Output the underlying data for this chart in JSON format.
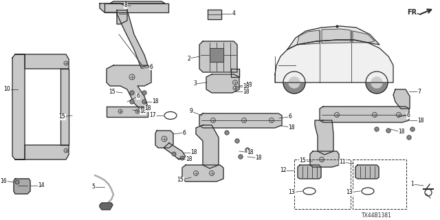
{
  "bg_color": "#ffffff",
  "diagram_ref": "TX44B1381",
  "gray": "#2a2a2a",
  "lightgray": "#aaaaaa",
  "fillgray": "#c8c8c8",
  "lw": 0.9
}
